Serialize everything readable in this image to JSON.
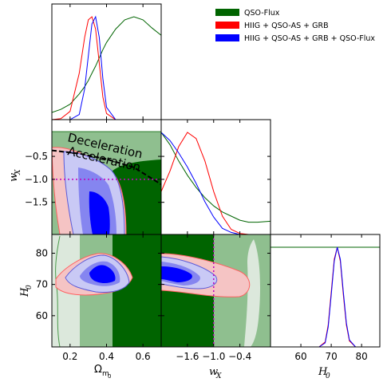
{
  "chart_data": {
    "type": "triangle",
    "parameters": [
      {
        "key": "om",
        "label": "Ω",
        "sub": "m",
        "sub2": "0",
        "range": [
          0.1,
          0.7
        ],
        "ticks": [
          0.2,
          0.4,
          0.6
        ],
        "tick_labels": [
          "0.2",
          "0.4",
          "0.6"
        ]
      },
      {
        "key": "wx",
        "label": "w",
        "sub": "X",
        "range": [
          -2.2,
          0.3
        ],
        "ticks": [
          -1.6,
          -1.0,
          -0.4
        ],
        "tick_labels": [
          "−1.6",
          "−1.0",
          "−0.4"
        ],
        "ticks_left": [
          -1.5,
          -1.0,
          -0.5
        ],
        "tick_labels_left": [
          "−1.5",
          "−1.0",
          "−0.5"
        ]
      },
      {
        "key": "h0",
        "label": "H",
        "sub": "0",
        "range": [
          50,
          86
        ],
        "ticks": [
          60,
          70,
          80
        ],
        "tick_labels": [
          "60",
          "70",
          "80"
        ]
      }
    ],
    "series": [
      {
        "name": "QSO-Flux",
        "color": "#006400"
      },
      {
        "name": "HIIG + QSO-AS + GRB",
        "color": "#ff0000"
      },
      {
        "name": "HIIG + QSO-AS + GRB + QSO-Flux",
        "color": "#0000ff"
      }
    ],
    "marginals": {
      "om": {
        "x": [
          0.1,
          0.15,
          0.2,
          0.25,
          0.28,
          0.3,
          0.32,
          0.34,
          0.36,
          0.38,
          0.4,
          0.45,
          0.5,
          0.55,
          0.6,
          0.65,
          0.7
        ],
        "QSO-Flux": [
          0.07,
          0.1,
          0.15,
          0.25,
          0.32,
          0.38,
          0.45,
          0.52,
          0.6,
          0.68,
          0.75,
          0.88,
          0.97,
          1.0,
          0.97,
          0.89,
          0.82
        ],
        "HIIG + QSO-AS + GRB": [
          0.0,
          0.01,
          0.08,
          0.45,
          0.8,
          0.97,
          1.0,
          0.88,
          0.55,
          0.22,
          0.06,
          0.0,
          0.0,
          0.0,
          0.0,
          0.0,
          0.0
        ],
        "HIIG + QSO-AS + GRB + QSO-Flux": [
          0.0,
          0.0,
          0.0,
          0.05,
          0.3,
          0.62,
          0.93,
          1.0,
          0.8,
          0.4,
          0.12,
          0.0,
          0.0,
          0.0,
          0.0,
          0.0,
          0.0
        ]
      },
      "wx": {
        "x": [
          -2.2,
          -2.0,
          -1.8,
          -1.6,
          -1.4,
          -1.2,
          -1.0,
          -0.8,
          -0.6,
          -0.4,
          -0.2,
          0.0,
          0.3
        ],
        "QSO-Flux": [
          1.0,
          0.88,
          0.72,
          0.58,
          0.46,
          0.36,
          0.28,
          0.22,
          0.18,
          0.14,
          0.12,
          0.12,
          0.13
        ],
        "HIIG + QSO-AS + GRB": [
          0.42,
          0.62,
          0.86,
          1.0,
          0.94,
          0.72,
          0.42,
          0.18,
          0.05,
          0.01,
          0.0,
          0.0,
          0.0
        ],
        "HIIG + QSO-AS + GRB + QSO-Flux": [
          1.0,
          0.92,
          0.8,
          0.66,
          0.5,
          0.32,
          0.17,
          0.06,
          0.02,
          0.0,
          0.0,
          0.0,
          0.0
        ]
      },
      "h0": {
        "x": [
          50,
          60,
          66,
          68,
          69,
          70,
          71,
          72,
          73,
          74,
          75,
          76,
          78,
          80,
          86
        ],
        "QSO-Flux": [
          1.0,
          1.0,
          1.0,
          1.0,
          1.0,
          1.0,
          1.0,
          1.0,
          1.0,
          1.0,
          1.0,
          1.0,
          1.0,
          1.0,
          1.0
        ],
        "HIIG + QSO-AS + GRB": [
          0.0,
          0.0,
          0.0,
          0.05,
          0.22,
          0.55,
          0.88,
          1.0,
          0.86,
          0.52,
          0.22,
          0.06,
          0.0,
          0.0,
          0.0
        ],
        "HIIG + QSO-AS + GRB + QSO-Flux": [
          0.0,
          0.0,
          0.0,
          0.04,
          0.2,
          0.52,
          0.86,
          1.0,
          0.88,
          0.55,
          0.24,
          0.07,
          0.0,
          0.0,
          0.0
        ]
      }
    },
    "reference_lines": {
      "om": null,
      "wx": -1.0,
      "h0": null
    },
    "annotations": {
      "upper": "Deceleration",
      "lower": "Acceleration"
    },
    "deceleration_boundary": {
      "om": [
        0.1,
        0.25,
        0.4,
        0.55,
        0.7
      ],
      "wx": [
        -0.37,
        -0.44,
        -0.56,
        -0.74,
        -1.11
      ]
    },
    "grid": false,
    "legend_location": "top-right"
  }
}
